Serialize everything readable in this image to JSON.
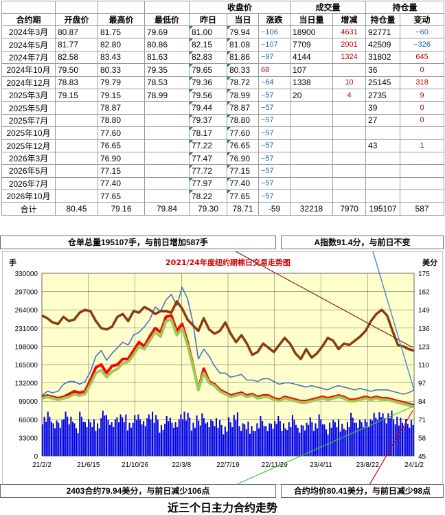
{
  "table": {
    "header_top": {
      "close_group": "收盘价",
      "volume_group": "成交量",
      "oi_group": "持仓量"
    },
    "header": [
      "合约期",
      "开盘价",
      "最高价",
      "最低价",
      "昨日",
      "当日",
      "涨跌",
      "当日量",
      "增减",
      "持仓量",
      "变动"
    ],
    "rows": [
      [
        "2024年3月",
        "80.87",
        "81.75",
        "79.69",
        "81.00",
        "79.94",
        "−106",
        "18900",
        "4631",
        "92771",
        "−60"
      ],
      [
        "2024年5月",
        "81.77",
        "82.80",
        "80.86",
        "82.15",
        "81.08",
        "−107",
        "7709",
        "2001",
        "42509",
        "−326"
      ],
      [
        "2024年7月",
        "82.58",
        "83.43",
        "81.63",
        "82.83",
        "81.86",
        "−97",
        "4144",
        "1324",
        "31802",
        "645"
      ],
      [
        "2024年10月",
        "79.50",
        "80.33",
        "79.35",
        "79.65",
        "80.33",
        "68",
        "107",
        "",
        "36",
        "0"
      ],
      [
        "2024年12月",
        "78.83",
        "79.79",
        "78.53",
        "79.36",
        "78.72",
        "−64",
        "1338",
        "10",
        "25145",
        "318"
      ],
      [
        "2025年3月",
        "79.15",
        "79.15",
        "78.99",
        "79.56",
        "78.99",
        "−57",
        "20",
        "4",
        "2735",
        "9"
      ],
      [
        "2025年5月",
        "",
        "78.87",
        "",
        "79.44",
        "78.87",
        "−57",
        "",
        "",
        "39",
        "0"
      ],
      [
        "2025年7月",
        "",
        "78.80",
        "",
        "79.37",
        "78.80",
        "−57",
        "",
        "",
        "27",
        "0"
      ],
      [
        "2025年10月",
        "",
        "77.60",
        "",
        "78.17",
        "77.60",
        "−57",
        "",
        "",
        "",
        ""
      ],
      [
        "2025年12月",
        "",
        "76.65",
        "",
        "77.22",
        "76.65",
        "−57",
        "",
        "",
        "43",
        "1"
      ],
      [
        "2026年3月",
        "",
        "76.90",
        "",
        "77.47",
        "76.90",
        "−57",
        "",
        "",
        "",
        ""
      ],
      [
        "2026年5月",
        "",
        "77.15",
        "",
        "77.72",
        "77.15",
        "−57",
        "",
        "",
        "",
        ""
      ],
      [
        "2026年7月",
        "",
        "77.40",
        "",
        "77.97",
        "77.40",
        "−57",
        "",
        "",
        "",
        ""
      ],
      [
        "2026年10月",
        "",
        "77.65",
        "",
        "78.22",
        "77.65",
        "−57",
        "",
        "",
        "",
        ""
      ]
    ],
    "total": [
      "合计",
      "80.45",
      "79.16",
      "79.84",
      "79.30",
      "78.71",
      "-59",
      "32218",
      "7970",
      "195107",
      "587"
    ]
  },
  "notes": {
    "warehouse": "仓单总量195107手，与前日增加587手",
    "a_index": "A指数91.4分，与前日不变",
    "main_contract": "2403合约79.94美分，与前日减少106点",
    "avg_price": "合约均价80.41美分，与前日减少98点"
  },
  "footer": "近三个日主力合约走势",
  "colors": {
    "plot_bg": "#ffffcc",
    "volume": "#0000ee",
    "a_index": "#8b3a0f",
    "red_line": "#ff0000",
    "green_line": "#99cc55",
    "blue_line": "#4472c4",
    "negative": "#1f5fa8",
    "positive": "#c00000"
  },
  "chart_data": {
    "type": "line",
    "title": "2021/24年度纽约期棉日交易走势图",
    "left_unit": "手",
    "right_unit": "美分",
    "left_ticks": [
      0,
      33000,
      66000,
      99000,
      132000,
      165000,
      198000,
      231000,
      264000,
      297000,
      330000
    ],
    "right_ticks": [
      45,
      58,
      71,
      84,
      97,
      110,
      123,
      136,
      149,
      162,
      175
    ],
    "x_ticks": [
      "21/2/2",
      "21/6/15",
      "21/10/26",
      "22/3/8",
      "22/7/19",
      "22/11/29",
      "23/4/11",
      "23/8/22",
      "24/1/2"
    ],
    "ylim_left": [
      0,
      330000
    ],
    "ylim_right": [
      45,
      175
    ],
    "series": [
      {
        "key": "a_index",
        "values": [
          145,
          143,
          140,
          139,
          144,
          141,
          142,
          147,
          149,
          148,
          141,
          136,
          135,
          137,
          144,
          146,
          141,
          148,
          147,
          151,
          149,
          146,
          148,
          148,
          147,
          155,
          150,
          142,
          138,
          134,
          143,
          135,
          132,
          134,
          140,
          132,
          126,
          131,
          125,
          117,
          119,
          125,
          122,
          119,
          124,
          129,
          125,
          118,
          114,
          121,
          115,
          118,
          123,
          129,
          127,
          121,
          125,
          124,
          127,
          130,
          134,
          141,
          146,
          149,
          145,
          134,
          124,
          123,
          121,
          120
        ]
      },
      {
        "key": "blue",
        "values": [
          88,
          91,
          90,
          91,
          96,
          98,
          98,
          96,
          98,
          105,
          116,
          120,
          113,
          118,
          122,
          126,
          124,
          131,
          133,
          137,
          142,
          151,
          148,
          156,
          160,
          152,
          165,
          157,
          140,
          114,
          121,
          116,
          109,
          104,
          104,
          101,
          102,
          103,
          99,
          99,
          98,
          100,
          100,
          98,
          96,
          97,
          97,
          96,
          95,
          94,
          95,
          94,
          93,
          92,
          94,
          95,
          94,
          93,
          92,
          93,
          92,
          91,
          92,
          92,
          92,
          91,
          90,
          89,
          90,
          92
        ]
      },
      {
        "key": "red",
        "values": [
          87,
          88,
          87,
          86,
          87,
          89,
          91,
          90,
          91,
          99,
          108,
          110,
          104,
          109,
          110,
          114,
          114,
          120,
          126,
          123,
          130,
          136,
          133,
          144,
          145,
          134,
          139,
          126,
          110,
          92,
          107,
          98,
          96,
          92,
          90,
          88,
          89,
          90,
          88,
          89,
          87,
          88,
          88,
          86,
          85,
          87,
          86,
          85,
          84,
          84,
          85,
          86,
          87,
          86,
          87,
          88,
          87,
          85,
          85,
          86,
          87,
          86,
          87,
          86,
          86,
          85,
          84,
          83,
          82,
          81
        ]
      },
      {
        "key": "green",
        "values": [
          86,
          87,
          86,
          85,
          86,
          87,
          89,
          88,
          89,
          96,
          104,
          106,
          101,
          105,
          107,
          111,
          112,
          117,
          123,
          121,
          127,
          133,
          130,
          141,
          142,
          131,
          136,
          124,
          109,
          92,
          104,
          97,
          95,
          91,
          89,
          87,
          88,
          89,
          87,
          88,
          86,
          87,
          87,
          85,
          84,
          86,
          85,
          84,
          83,
          83,
          84,
          85,
          86,
          85,
          86,
          87,
          86,
          84,
          84,
          85,
          86,
          85,
          86,
          85,
          85,
          84,
          83,
          82,
          81,
          80
        ]
      },
      {
        "key": "volume",
        "values": [
          68,
          72,
          55,
          60,
          70,
          65,
          48,
          73,
          58,
          62,
          50,
          77,
          64,
          55,
          68,
          72,
          52,
          70,
          66,
          58,
          74,
          63,
          49,
          69,
          61,
          57,
          75,
          68,
          54,
          62,
          70,
          58,
          64,
          56,
          48,
          60,
          68,
          52,
          59,
          46,
          55,
          63,
          49,
          57,
          61,
          52,
          58,
          66,
          47,
          55,
          60,
          53,
          64,
          50,
          57,
          62,
          49,
          56,
          68,
          54,
          59,
          63,
          70,
          75,
          68,
          72,
          65,
          58,
          60,
          62
        ]
      }
    ]
  }
}
